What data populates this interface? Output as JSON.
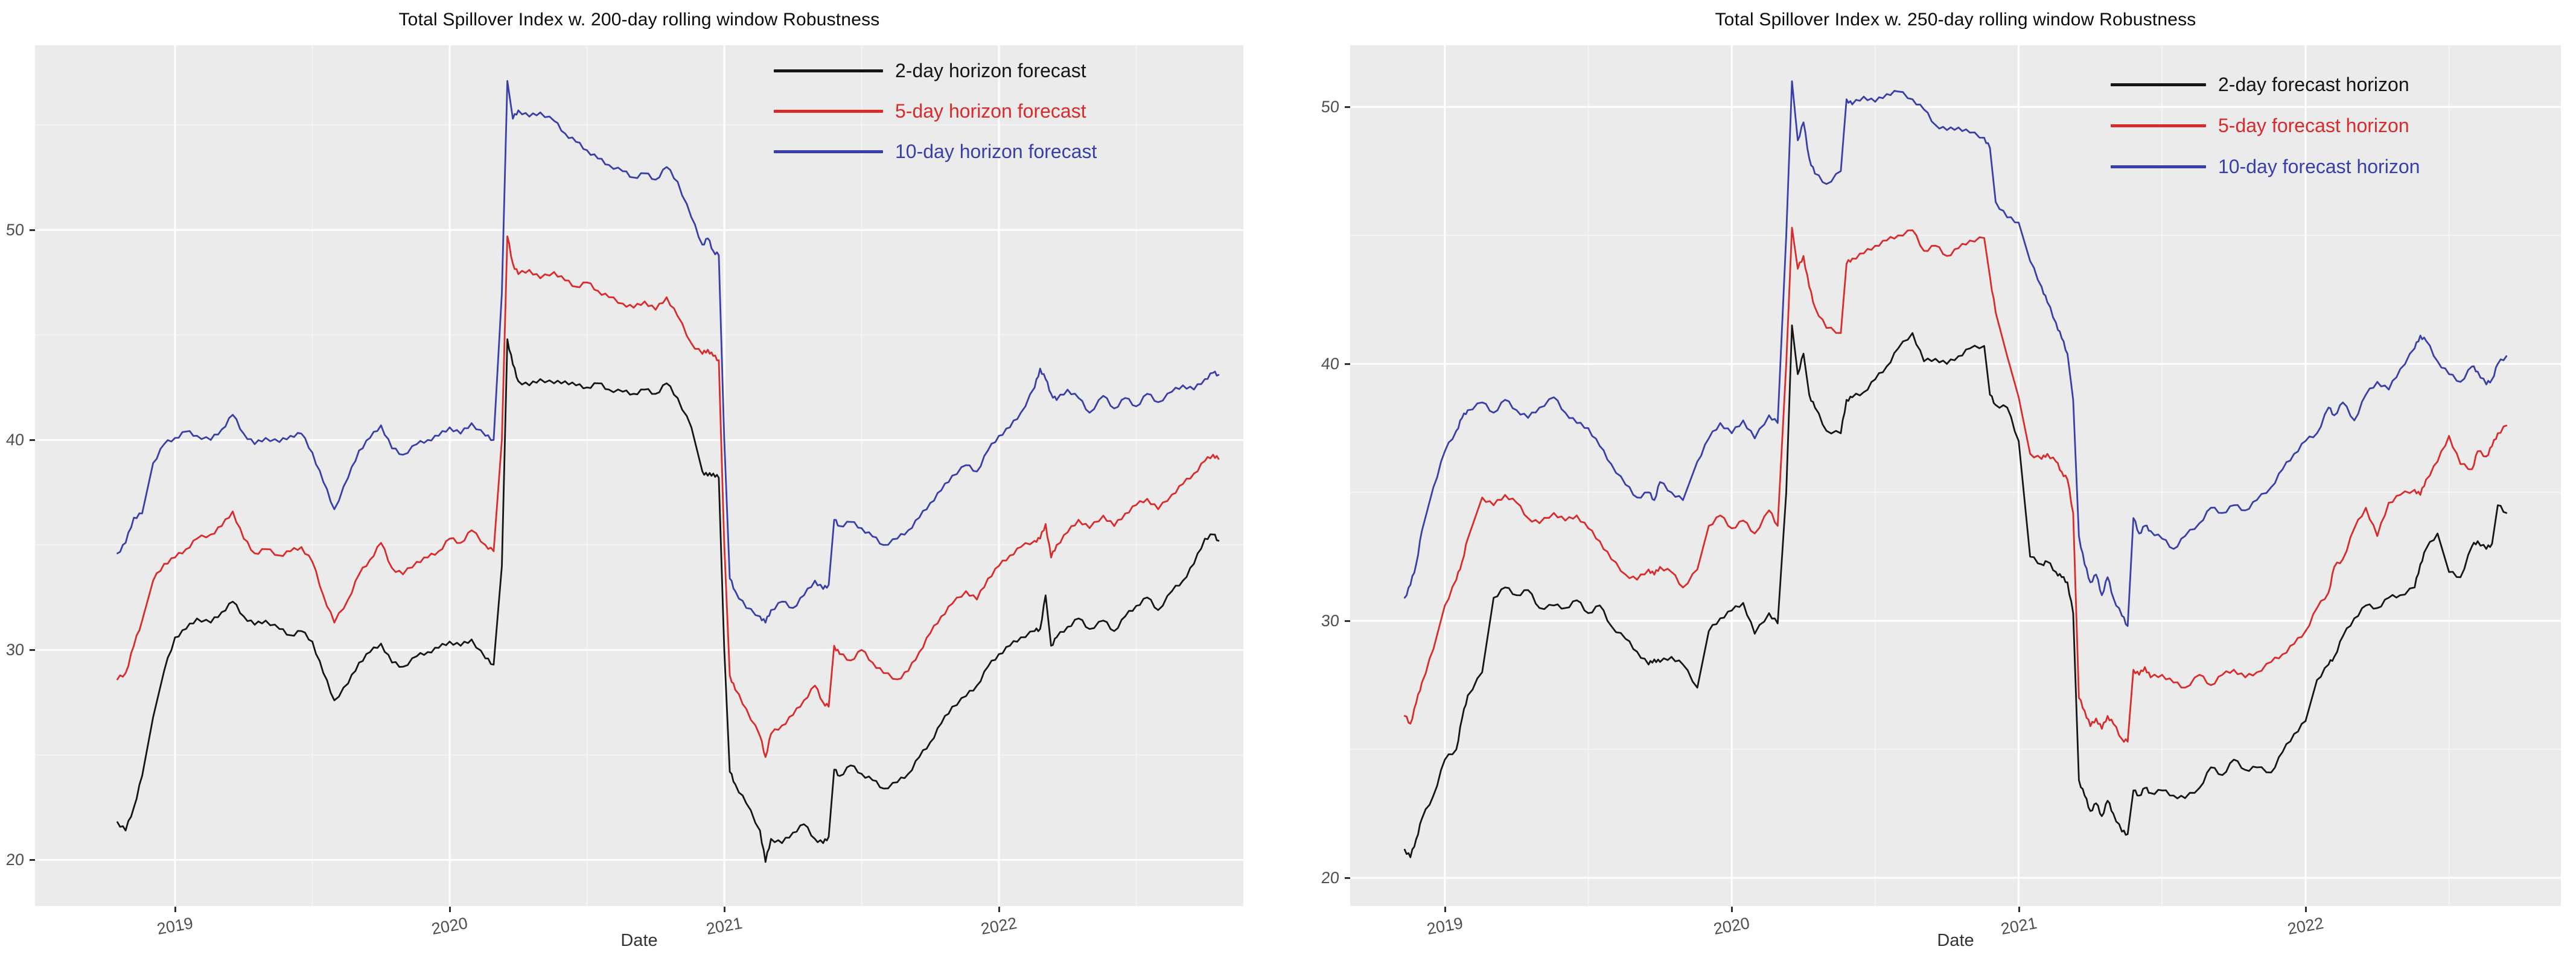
{
  "figure": {
    "background": "#ffffff",
    "panel_background": "#ebebeb",
    "grid_major_color": "#ffffff",
    "grid_minor_color": "#f6f6f6",
    "axis_text_color": "#4f4f4f",
    "title_color": "#0b0b0b"
  },
  "chart_data": [
    {
      "type": "line",
      "title": "Total Spillover Index w. 200-day rolling window Robustness",
      "xlabel": "Date",
      "ylabel": "",
      "grid": true,
      "legend_position": "top-right-inside",
      "xlim": [
        2018.49,
        2022.89
      ],
      "ylim": [
        17.8,
        58.8
      ],
      "x_ticks": [
        2019,
        2020,
        2021,
        2022
      ],
      "x_tick_labels": [
        "2019",
        "2020",
        "2021",
        "2022"
      ],
      "x_minor_ticks": [
        2019.5,
        2020.5,
        2021.5,
        2022.5
      ],
      "y_ticks": [
        20,
        30,
        40,
        50
      ],
      "y_tick_labels": [
        "20",
        "30",
        "40",
        "50"
      ],
      "y_minor_ticks": [
        25,
        35,
        45,
        55
      ],
      "x": [
        2018.79,
        2018.82,
        2018.85,
        2018.88,
        2018.92,
        2018.96,
        2019.0,
        2019.04,
        2019.08,
        2019.13,
        2019.17,
        2019.21,
        2019.25,
        2019.29,
        2019.33,
        2019.38,
        2019.42,
        2019.46,
        2019.5,
        2019.54,
        2019.58,
        2019.63,
        2019.67,
        2019.71,
        2019.75,
        2019.79,
        2019.83,
        2019.88,
        2019.92,
        2019.96,
        2020.0,
        2020.04,
        2020.08,
        2020.13,
        2020.16,
        2020.19,
        2020.21,
        2020.23,
        2020.25,
        2020.29,
        2020.33,
        2020.38,
        2020.42,
        2020.46,
        2020.5,
        2020.54,
        2020.58,
        2020.63,
        2020.67,
        2020.71,
        2020.75,
        2020.79,
        2020.83,
        2020.88,
        2020.92,
        2020.94,
        2020.96,
        2020.98,
        2021.0,
        2021.02,
        2021.04,
        2021.08,
        2021.13,
        2021.15,
        2021.17,
        2021.21,
        2021.25,
        2021.29,
        2021.33,
        2021.36,
        2021.38,
        2021.4,
        2021.42,
        2021.46,
        2021.5,
        2021.54,
        2021.58,
        2021.63,
        2021.67,
        2021.71,
        2021.75,
        2021.79,
        2021.83,
        2021.88,
        2021.92,
        2021.96,
        2022.0,
        2022.04,
        2022.08,
        2022.13,
        2022.15,
        2022.17,
        2022.19,
        2022.21,
        2022.25,
        2022.29,
        2022.33,
        2022.38,
        2022.42,
        2022.46,
        2022.5,
        2022.54,
        2022.58,
        2022.63,
        2022.67,
        2022.71,
        2022.75,
        2022.78,
        2022.8
      ],
      "series": [
        {
          "name": "2-day horizon forecast",
          "color": "#151515",
          "values": [
            21.8,
            21.4,
            22.5,
            24.0,
            26.8,
            29.0,
            30.6,
            31.0,
            31.5,
            31.3,
            31.8,
            32.3,
            31.6,
            31.2,
            31.4,
            31.0,
            30.7,
            30.9,
            30.4,
            28.9,
            27.6,
            28.4,
            29.4,
            29.9,
            30.3,
            29.4,
            29.2,
            29.7,
            29.9,
            30.1,
            30.4,
            30.2,
            30.5,
            29.6,
            29.3,
            34.0,
            44.8,
            43.6,
            42.8,
            42.6,
            42.9,
            42.7,
            42.8,
            42.6,
            42.5,
            42.7,
            42.4,
            42.3,
            42.2,
            42.4,
            42.2,
            42.7,
            42.0,
            40.6,
            38.5,
            38.3,
            38.4,
            38.2,
            30.0,
            24.2,
            23.6,
            22.7,
            21.4,
            19.9,
            21.0,
            20.8,
            21.3,
            21.7,
            21.0,
            20.8,
            21.1,
            24.3,
            24.0,
            24.5,
            24.1,
            23.8,
            23.4,
            23.7,
            24.1,
            24.9,
            25.6,
            26.5,
            27.3,
            27.8,
            28.3,
            29.2,
            29.8,
            30.2,
            30.6,
            30.9,
            31.0,
            32.6,
            30.2,
            30.6,
            31.1,
            31.5,
            31.0,
            31.4,
            30.9,
            31.6,
            32.1,
            32.5,
            31.9,
            32.8,
            33.3,
            34.1,
            35.3,
            35.5,
            35.2
          ]
        },
        {
          "name": "5-day horizon forecast",
          "color": "#d92b2b",
          "values": [
            28.6,
            28.9,
            30.2,
            31.4,
            33.3,
            34.1,
            34.4,
            34.8,
            35.3,
            35.5,
            35.9,
            36.6,
            35.3,
            34.6,
            34.8,
            34.5,
            34.7,
            34.9,
            34.2,
            32.6,
            31.3,
            32.4,
            33.6,
            34.3,
            35.1,
            33.9,
            33.6,
            34.2,
            34.4,
            34.7,
            35.3,
            35.1,
            35.7,
            35.0,
            34.7,
            40.0,
            49.7,
            48.4,
            47.9,
            48.1,
            47.7,
            48.0,
            47.6,
            47.3,
            47.5,
            47.1,
            46.8,
            46.5,
            46.3,
            46.6,
            46.2,
            46.8,
            45.9,
            44.6,
            44.1,
            44.3,
            44.0,
            43.8,
            35.0,
            28.8,
            28.1,
            27.2,
            25.9,
            24.9,
            26.0,
            26.4,
            26.9,
            27.6,
            28.3,
            27.5,
            27.3,
            30.2,
            29.8,
            29.5,
            30.0,
            29.4,
            28.9,
            28.6,
            29.0,
            29.9,
            30.8,
            31.6,
            32.2,
            32.8,
            32.4,
            33.4,
            34.0,
            34.5,
            34.9,
            35.2,
            35.3,
            36.0,
            34.4,
            35.0,
            35.6,
            36.2,
            35.8,
            36.4,
            35.9,
            36.5,
            36.9,
            37.2,
            36.7,
            37.4,
            37.9,
            38.4,
            39.0,
            39.3,
            39.1
          ]
        },
        {
          "name": "10-day horizon forecast",
          "color": "#383fa8",
          "values": [
            34.6,
            35.1,
            36.3,
            36.5,
            38.9,
            39.8,
            40.1,
            40.4,
            40.2,
            40.0,
            40.5,
            41.2,
            40.3,
            39.8,
            40.1,
            39.9,
            40.2,
            40.3,
            39.4,
            38.0,
            36.7,
            38.2,
            39.5,
            40.1,
            40.7,
            39.6,
            39.3,
            39.8,
            40.0,
            40.2,
            40.6,
            40.3,
            40.8,
            40.2,
            40.0,
            47.0,
            57.1,
            55.3,
            55.7,
            55.4,
            55.6,
            55.2,
            54.6,
            54.2,
            53.8,
            53.4,
            53.1,
            52.8,
            52.5,
            52.7,
            52.4,
            53.0,
            52.3,
            50.6,
            49.3,
            49.6,
            49.0,
            48.8,
            40.0,
            33.4,
            32.8,
            32.0,
            31.6,
            31.3,
            31.9,
            32.3,
            32.0,
            32.6,
            33.3,
            32.9,
            33.1,
            36.2,
            35.9,
            36.1,
            35.8,
            35.4,
            35.0,
            35.3,
            35.7,
            36.3,
            37.0,
            37.6,
            38.3,
            38.8,
            38.5,
            39.5,
            40.2,
            40.6,
            41.3,
            42.5,
            43.4,
            42.9,
            42.2,
            41.9,
            42.4,
            42.0,
            41.3,
            42.1,
            41.5,
            42.0,
            41.6,
            42.2,
            41.8,
            42.3,
            42.6,
            42.4,
            42.9,
            43.2,
            43.1
          ]
        }
      ]
    },
    {
      "type": "line",
      "title": "Total Spillover Index w. 250-day rolling window Robustness",
      "xlabel": "Date",
      "ylabel": "",
      "grid": true,
      "legend_position": "top-right-inside",
      "xlim": [
        2018.67,
        2022.89
      ],
      "ylim": [
        18.9,
        52.4
      ],
      "x_ticks": [
        2019,
        2020,
        2021,
        2022
      ],
      "x_tick_labels": [
        "2019",
        "2020",
        "2021",
        "2022"
      ],
      "x_minor_ticks": [
        2019.5,
        2020.5,
        2021.5,
        2022.5
      ],
      "y_ticks": [
        20,
        30,
        40,
        50
      ],
      "y_tick_labels": [
        "20",
        "30",
        "40",
        "50"
      ],
      "y_minor_ticks": [
        25,
        35,
        45
      ],
      "x": [
        2018.86,
        2018.88,
        2018.9,
        2018.92,
        2018.96,
        2019.0,
        2019.04,
        2019.06,
        2019.08,
        2019.13,
        2019.17,
        2019.21,
        2019.25,
        2019.29,
        2019.33,
        2019.38,
        2019.42,
        2019.46,
        2019.5,
        2019.54,
        2019.58,
        2019.63,
        2019.67,
        2019.71,
        2019.73,
        2019.75,
        2019.79,
        2019.83,
        2019.88,
        2019.92,
        2019.96,
        2020.0,
        2020.04,
        2020.08,
        2020.13,
        2020.16,
        2020.19,
        2020.21,
        2020.23,
        2020.25,
        2020.27,
        2020.29,
        2020.33,
        2020.38,
        2020.4,
        2020.42,
        2020.46,
        2020.5,
        2020.54,
        2020.58,
        2020.63,
        2020.67,
        2020.71,
        2020.75,
        2020.79,
        2020.83,
        2020.88,
        2020.9,
        2020.92,
        2020.96,
        2021.0,
        2021.04,
        2021.08,
        2021.1,
        2021.13,
        2021.15,
        2021.17,
        2021.19,
        2021.21,
        2021.23,
        2021.25,
        2021.27,
        2021.29,
        2021.31,
        2021.33,
        2021.36,
        2021.38,
        2021.4,
        2021.42,
        2021.44,
        2021.46,
        2021.5,
        2021.54,
        2021.58,
        2021.63,
        2021.67,
        2021.71,
        2021.75,
        2021.79,
        2021.83,
        2021.88,
        2021.92,
        2021.96,
        2022.0,
        2022.04,
        2022.08,
        2022.1,
        2022.13,
        2022.17,
        2022.21,
        2022.25,
        2022.29,
        2022.33,
        2022.38,
        2022.4,
        2022.42,
        2022.46,
        2022.5,
        2022.54,
        2022.58,
        2022.6,
        2022.63,
        2022.65,
        2022.67,
        2022.7
      ],
      "series": [
        {
          "name": "2-day forecast horizon",
          "color": "#151515",
          "values": [
            21.1,
            20.8,
            21.5,
            22.3,
            23.2,
            24.6,
            25.0,
            26.2,
            27.1,
            28.0,
            30.9,
            31.3,
            31.0,
            31.2,
            30.5,
            30.6,
            30.5,
            30.8,
            30.3,
            30.6,
            29.8,
            29.3,
            28.8,
            28.3,
            28.5,
            28.4,
            28.6,
            28.3,
            27.4,
            29.6,
            30.1,
            30.4,
            30.7,
            29.5,
            30.3,
            29.9,
            35.0,
            41.5,
            39.6,
            40.4,
            38.8,
            38.3,
            37.4,
            37.3,
            38.6,
            38.7,
            38.9,
            39.4,
            39.9,
            40.6,
            41.2,
            40.1,
            40.2,
            40.0,
            40.3,
            40.6,
            40.7,
            38.8,
            38.4,
            38.3,
            37.0,
            32.5,
            32.2,
            32.3,
            31.9,
            31.7,
            31.5,
            30.3,
            23.8,
            23.2,
            22.6,
            22.9,
            22.4,
            23.0,
            22.5,
            21.8,
            21.7,
            23.4,
            23.2,
            23.5,
            23.3,
            23.4,
            23.2,
            23.1,
            23.5,
            24.3,
            24.0,
            24.6,
            24.2,
            24.3,
            24.1,
            24.9,
            25.6,
            26.1,
            27.7,
            28.3,
            28.6,
            29.4,
            30.1,
            30.6,
            30.5,
            30.9,
            31.0,
            31.3,
            32.2,
            32.8,
            33.4,
            31.9,
            31.7,
            32.9,
            33.1,
            32.8,
            33.0,
            34.5,
            34.2
          ]
        },
        {
          "name": "5-day forecast horizon",
          "color": "#d92b2b",
          "values": [
            26.3,
            26.0,
            26.8,
            27.6,
            28.9,
            30.6,
            31.6,
            32.3,
            33.2,
            34.8,
            34.5,
            34.9,
            34.6,
            34.0,
            33.8,
            34.2,
            33.9,
            34.1,
            33.6,
            33.1,
            32.4,
            31.8,
            31.6,
            32.0,
            31.8,
            32.1,
            31.9,
            31.3,
            32.0,
            33.7,
            34.1,
            33.6,
            33.9,
            33.4,
            34.3,
            33.7,
            40.0,
            45.3,
            43.7,
            44.2,
            43.0,
            42.2,
            41.4,
            41.2,
            43.9,
            44.1,
            44.3,
            44.6,
            44.8,
            45.0,
            45.2,
            44.4,
            44.6,
            44.2,
            44.5,
            44.8,
            44.9,
            43.4,
            42.0,
            40.3,
            38.7,
            36.5,
            36.3,
            36.5,
            36.2,
            35.8,
            35.5,
            34.2,
            27.0,
            26.5,
            25.9,
            26.2,
            25.8,
            26.3,
            26.0,
            25.4,
            25.3,
            28.1,
            27.9,
            28.2,
            27.8,
            27.9,
            27.6,
            27.4,
            27.9,
            27.5,
            27.9,
            28.1,
            27.8,
            28.0,
            28.4,
            28.7,
            29.1,
            29.6,
            30.5,
            31.1,
            32.1,
            32.4,
            33.6,
            34.4,
            33.3,
            34.6,
            34.9,
            35.1,
            34.9,
            35.5,
            36.2,
            37.2,
            36.1,
            35.9,
            36.6,
            36.4,
            36.8,
            37.3,
            37.6
          ]
        },
        {
          "name": "10-day forecast horizon",
          "color": "#383fa8",
          "values": [
            30.9,
            31.4,
            32.2,
            33.5,
            35.2,
            36.6,
            37.4,
            37.9,
            38.2,
            38.5,
            38.1,
            38.6,
            38.2,
            37.9,
            38.3,
            38.7,
            38.1,
            37.7,
            37.5,
            36.8,
            36.1,
            35.3,
            34.8,
            35.0,
            34.7,
            35.4,
            35.0,
            34.7,
            36.2,
            37.1,
            37.7,
            37.3,
            37.8,
            37.1,
            38.0,
            37.7,
            45.0,
            51.0,
            48.7,
            49.4,
            48.0,
            47.4,
            47.0,
            47.5,
            50.3,
            50.1,
            50.4,
            50.2,
            50.5,
            50.6,
            50.3,
            49.9,
            49.3,
            49.1,
            49.2,
            49.0,
            48.8,
            48.4,
            46.3,
            45.7,
            45.5,
            44.0,
            43.0,
            42.4,
            41.6,
            41.0,
            40.4,
            38.6,
            33.3,
            32.2,
            31.5,
            31.8,
            31.0,
            31.7,
            30.9,
            30.2,
            29.8,
            34.0,
            33.4,
            33.7,
            33.5,
            33.2,
            32.8,
            33.3,
            33.8,
            34.4,
            34.2,
            34.5,
            34.3,
            34.7,
            35.2,
            35.9,
            36.5,
            37.0,
            37.3,
            38.3,
            38.0,
            38.5,
            37.8,
            38.8,
            39.3,
            39.0,
            39.8,
            40.6,
            41.1,
            40.9,
            40.1,
            39.6,
            39.3,
            39.9,
            39.7,
            39.2,
            39.4,
            40.0,
            40.3
          ]
        }
      ]
    }
  ]
}
